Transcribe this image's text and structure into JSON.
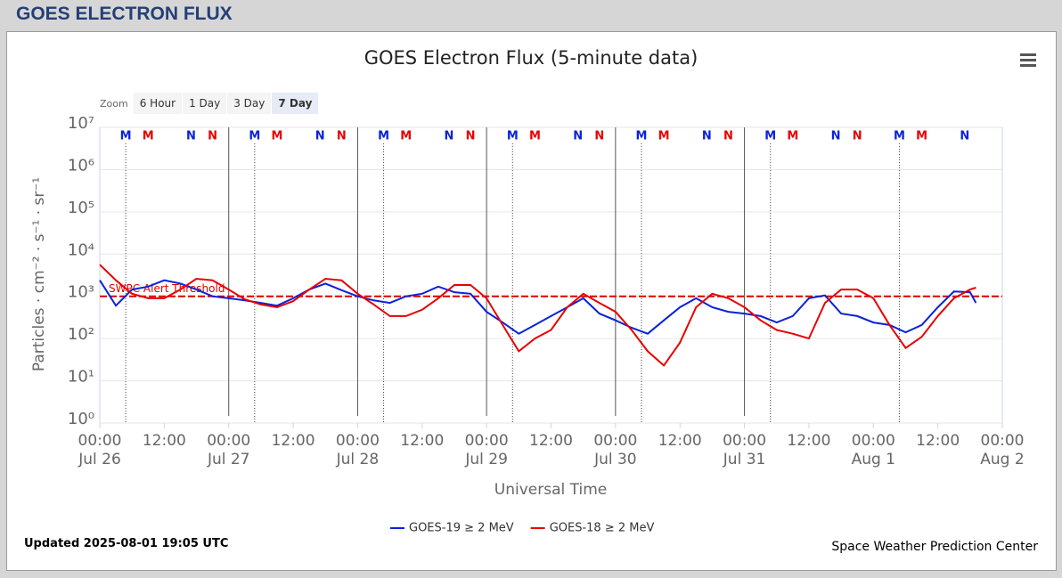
{
  "page": {
    "header": "GOES ELECTRON FLUX",
    "zoom": {
      "label": "Zoom",
      "buttons": [
        "6 Hour",
        "1 Day",
        "3 Day",
        "7 Day"
      ],
      "selected": 3
    },
    "updated": "Updated 2025-08-01 19:05 UTC",
    "credit": "Space Weather Prediction Center"
  },
  "chart_data": {
    "type": "line",
    "title": "GOES Electron Flux (5-minute data)",
    "xlabel": "Universal Time",
    "ylabel": "Particles · cm⁻² · s⁻¹ · sr⁻¹",
    "log_y": true,
    "grid": true,
    "ylim": [
      1,
      10000000
    ],
    "yticks": [
      {
        "value": 1,
        "label": "10⁰"
      },
      {
        "value": 10,
        "label": "10¹"
      },
      {
        "value": 100,
        "label": "10²"
      },
      {
        "value": 1000,
        "label": "10³"
      },
      {
        "value": 10000,
        "label": "10⁴"
      },
      {
        "value": 100000,
        "label": "10⁵"
      },
      {
        "value": 1000000,
        "label": "10⁶"
      },
      {
        "value": 10000000,
        "label": "10⁷"
      }
    ],
    "xlim": [
      "Jul 26 00:00",
      "Aug 2 00:00"
    ],
    "xticks": [
      {
        "value": "Jul 26 00:00",
        "label": "00:00"
      },
      {
        "value": "Jul 26 12:00",
        "label": "12:00"
      },
      {
        "value": "Jul 27 00:00",
        "label": "00:00"
      },
      {
        "value": "Jul 27 12:00",
        "label": "12:00"
      },
      {
        "value": "Jul 28 00:00",
        "label": "00:00"
      },
      {
        "value": "Jul 28 12:00",
        "label": "12:00"
      },
      {
        "value": "Jul 29 00:00",
        "label": "00:00"
      },
      {
        "value": "Jul 29 12:00",
        "label": "12:00"
      },
      {
        "value": "Jul 30 00:00",
        "label": "00:00"
      },
      {
        "value": "Jul 30 12:00",
        "label": "12:00"
      },
      {
        "value": "Jul 31 00:00",
        "label": "00:00"
      },
      {
        "value": "Jul 31 12:00",
        "label": "12:00"
      },
      {
        "value": "Aug 1 00:00",
        "label": "00:00"
      },
      {
        "value": "Aug 1 12:00",
        "label": "12:00"
      },
      {
        "value": "Aug 2 00:00",
        "label": "00:00"
      }
    ],
    "date_labels": [
      {
        "value": "Jul 26 00:00",
        "label": "Jul 26"
      },
      {
        "value": "Jul 27 00:00",
        "label": "Jul 27"
      },
      {
        "value": "Jul 28 00:00",
        "label": "Jul 28"
      },
      {
        "value": "Jul 29 00:00",
        "label": "Jul 29"
      },
      {
        "value": "Jul 30 00:00",
        "label": "Jul 30"
      },
      {
        "value": "Jul 31 00:00",
        "label": "Jul 31"
      },
      {
        "value": "Aug 1 00:00",
        "label": "Aug 1"
      },
      {
        "value": "Aug 2 00:00",
        "label": "Aug 2"
      }
    ],
    "day_lines": [
      "Jul 27 00:00",
      "Jul 28 00:00",
      "Jul 29 00:00",
      "Jul 30 00:00",
      "Jul 31 00:00"
    ],
    "threshold": {
      "value": 1000,
      "label": "SWPC Alert Threshold",
      "color": "#e00000"
    },
    "x": [
      "Jul 26 00:00",
      "Jul 26 03:00",
      "Jul 26 06:00",
      "Jul 26 09:00",
      "Jul 26 12:00",
      "Jul 26 15:00",
      "Jul 26 18:00",
      "Jul 26 21:00",
      "Jul 27 00:00",
      "Jul 27 03:00",
      "Jul 27 06:00",
      "Jul 27 09:00",
      "Jul 27 12:00",
      "Jul 27 15:00",
      "Jul 27 18:00",
      "Jul 27 21:00",
      "Jul 28 00:00",
      "Jul 28 03:00",
      "Jul 28 06:00",
      "Jul 28 09:00",
      "Jul 28 12:00",
      "Jul 28 15:00",
      "Jul 28 18:00",
      "Jul 28 21:00",
      "Jul 29 00:00",
      "Jul 29 03:00",
      "Jul 29 06:00",
      "Jul 29 09:00",
      "Jul 29 12:00",
      "Jul 29 15:00",
      "Jul 29 18:00",
      "Jul 29 21:00",
      "Jul 30 00:00",
      "Jul 30 03:00",
      "Jul 30 06:00",
      "Jul 30 09:00",
      "Jul 30 12:00",
      "Jul 30 15:00",
      "Jul 30 18:00",
      "Jul 30 21:00",
      "Jul 31 00:00",
      "Jul 31 03:00",
      "Jul 31 06:00",
      "Jul 31 09:00",
      "Jul 31 12:00",
      "Jul 31 15:00",
      "Jul 31 18:00",
      "Jul 31 21:00",
      "Aug 1 00:00",
      "Aug 1 03:00",
      "Aug 1 06:00",
      "Aug 1 09:00",
      "Aug 1 12:00",
      "Aug 1 15:00",
      "Aug 1 18:00",
      "Aug 1 19:05"
    ],
    "series": [
      {
        "name": "GOES-19 ≥ 2 MeV",
        "color": "#0a22d8",
        "values": [
          2400,
          600,
          1450,
          1700,
          2400,
          2000,
          1450,
          1000,
          900,
          800,
          700,
          600,
          900,
          1450,
          2000,
          1400,
          1000,
          800,
          700,
          1000,
          1150,
          1700,
          1250,
          1150,
          430,
          240,
          130,
          210,
          340,
          550,
          900,
          390,
          270,
          180,
          130,
          270,
          550,
          900,
          550,
          430,
          390,
          340,
          240,
          340,
          900,
          1050,
          390,
          340,
          240,
          210,
          140,
          210,
          550,
          1300,
          1250,
          700
        ]
      },
      {
        "name": "GOES-18 ≥ 2 MeV",
        "color": "#e80000",
        "values": [
          5600,
          2400,
          1150,
          900,
          900,
          1450,
          2600,
          2400,
          1450,
          850,
          640,
          550,
          770,
          1450,
          2600,
          2400,
          1150,
          640,
          340,
          340,
          480,
          900,
          1850,
          1850,
          900,
          210,
          50,
          100,
          160,
          550,
          1150,
          700,
          430,
          160,
          50,
          23,
          80,
          550,
          1150,
          900,
          550,
          270,
          160,
          130,
          100,
          700,
          1450,
          1450,
          900,
          210,
          60,
          110,
          340,
          900,
          1450,
          1600
        ]
      }
    ],
    "markers": [
      {
        "label": "M",
        "x": "Jul 26 04:50",
        "series": 0,
        "line": true
      },
      {
        "label": "M",
        "x": "Jul 26 09:00",
        "series": 1
      },
      {
        "label": "N",
        "x": "Jul 26 17:00",
        "series": 0
      },
      {
        "label": "N",
        "x": "Jul 26 21:00",
        "series": 1
      },
      {
        "label": "M",
        "x": "Jul 27 04:50",
        "series": 0,
        "line": true
      },
      {
        "label": "M",
        "x": "Jul 27 09:00",
        "series": 1
      },
      {
        "label": "N",
        "x": "Jul 27 17:00",
        "series": 0
      },
      {
        "label": "N",
        "x": "Jul 27 21:00",
        "series": 1
      },
      {
        "label": "M",
        "x": "Jul 28 04:50",
        "series": 0,
        "line": true
      },
      {
        "label": "M",
        "x": "Jul 28 09:00",
        "series": 1
      },
      {
        "label": "N",
        "x": "Jul 28 17:00",
        "series": 0
      },
      {
        "label": "N",
        "x": "Jul 28 21:00",
        "series": 1
      },
      {
        "label": "M",
        "x": "Jul 29 04:50",
        "series": 0,
        "line": true
      },
      {
        "label": "M",
        "x": "Jul 29 09:00",
        "series": 1
      },
      {
        "label": "N",
        "x": "Jul 29 17:00",
        "series": 0
      },
      {
        "label": "N",
        "x": "Jul 29 21:00",
        "series": 1
      },
      {
        "label": "M",
        "x": "Jul 30 04:50",
        "series": 0,
        "line": true
      },
      {
        "label": "M",
        "x": "Jul 30 09:00",
        "series": 1
      },
      {
        "label": "N",
        "x": "Jul 30 17:00",
        "series": 0
      },
      {
        "label": "N",
        "x": "Jul 30 21:00",
        "series": 1
      },
      {
        "label": "M",
        "x": "Jul 31 04:50",
        "series": 0,
        "line": true
      },
      {
        "label": "M",
        "x": "Jul 31 09:00",
        "series": 1
      },
      {
        "label": "N",
        "x": "Jul 31 17:00",
        "series": 0
      },
      {
        "label": "N",
        "x": "Jul 31 21:00",
        "series": 1
      },
      {
        "label": "M",
        "x": "Aug 1 04:50",
        "series": 0,
        "line": true
      },
      {
        "label": "M",
        "x": "Aug 1 09:00",
        "series": 1
      },
      {
        "label": "N",
        "x": "Aug 1 17:00",
        "series": 0
      }
    ]
  }
}
